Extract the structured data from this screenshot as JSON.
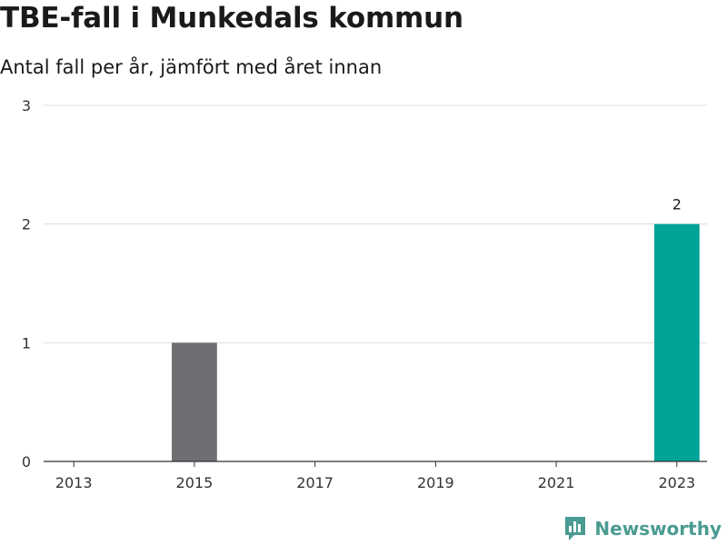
{
  "title": "TBE-fall i Munkedals kommun",
  "subtitle": "Antal fall per år, jämfört med året innan",
  "brand": {
    "name": "Newsworthy",
    "icon": "bar-chart-logo-icon",
    "color": "#4a9b91"
  },
  "chart_data": {
    "type": "bar",
    "categories": [
      "2013",
      "2014",
      "2015",
      "2016",
      "2017",
      "2018",
      "2019",
      "2020",
      "2021",
      "2022",
      "2023"
    ],
    "values": [
      0,
      0,
      1,
      0,
      0,
      0,
      0,
      0,
      0,
      0,
      2
    ],
    "x_tick_labels": [
      "2013",
      "2015",
      "2017",
      "2019",
      "2021",
      "2023"
    ],
    "y_ticks": [
      0,
      1,
      2,
      3
    ],
    "ylim": [
      0,
      3
    ],
    "grid": true,
    "data_labels": [
      {
        "category": "2023",
        "text": "2"
      }
    ],
    "colors": {
      "default": "#6f6e72",
      "highlight": "#00a398"
    },
    "highlight_category": "2023"
  }
}
